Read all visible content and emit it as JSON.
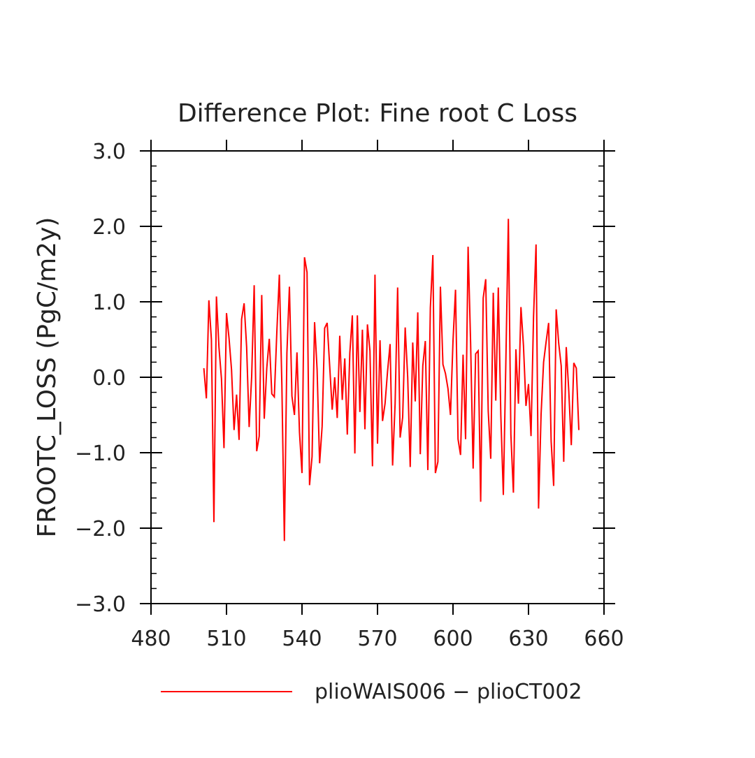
{
  "chart_data": {
    "type": "line",
    "title": "Difference Plot: Fine root C Loss",
    "xlabel": "",
    "ylabel": "FROOTC_LOSS  (PgC/m2y)",
    "xlim": [
      480,
      660
    ],
    "ylim": [
      -3.0,
      3.0
    ],
    "x_ticks": [
      480,
      510,
      540,
      570,
      600,
      630,
      660
    ],
    "x_tick_labels": [
      "480",
      "510",
      "540",
      "570",
      "600",
      "630",
      "660"
    ],
    "y_ticks": [
      -3.0,
      -2.0,
      -1.0,
      0.0,
      1.0,
      2.0,
      3.0
    ],
    "y_tick_labels": [
      "−3.0",
      "−2.0",
      "−1.0",
      "0.0",
      "1.0",
      "2.0",
      "3.0"
    ],
    "grid": false,
    "legend_position": "bottom",
    "series": [
      {
        "name": "plioWAIS006 − plioCT002",
        "color": "#ff0000",
        "x_start": 501,
        "x_step": 1,
        "values": [
          0.12,
          -0.28,
          1.02,
          0.5,
          -1.92,
          1.07,
          0.4,
          -0.02,
          -0.94,
          0.85,
          0.52,
          0.1,
          -0.7,
          -0.23,
          -0.83,
          0.77,
          0.98,
          0.4,
          -0.66,
          0.01,
          1.22,
          -0.98,
          -0.78,
          1.09,
          -0.55,
          0.12,
          0.51,
          -0.22,
          -0.26,
          0.6,
          1.36,
          -0.1,
          -2.17,
          0.32,
          1.2,
          -0.25,
          -0.5,
          0.33,
          -0.73,
          -1.27,
          1.59,
          1.39,
          -1.43,
          -1.05,
          0.73,
          0.1,
          -1.14,
          -0.65,
          0.65,
          0.72,
          0.15,
          -0.43,
          0.0,
          -0.54,
          0.55,
          -0.3,
          0.25,
          -0.76,
          0.32,
          0.82,
          -1.01,
          0.82,
          -0.46,
          0.63,
          -0.69,
          0.7,
          0.35,
          -1.18,
          1.36,
          -0.88,
          0.49,
          -0.58,
          -0.35,
          0.08,
          0.44,
          -1.17,
          -0.35,
          1.19,
          -0.8,
          -0.53,
          0.66,
          0.0,
          -1.19,
          0.46,
          -0.32,
          0.86,
          -1.02,
          0.15,
          0.48,
          -1.23,
          0.92,
          1.62,
          -1.27,
          -1.12,
          1.2,
          0.17,
          0.05,
          -0.15,
          -0.5,
          0.48,
          1.16,
          -0.82,
          -1.03,
          0.3,
          -0.82,
          1.73,
          0.45,
          -1.21,
          0.31,
          0.35,
          -1.65,
          1.05,
          1.3,
          -0.45,
          -1.08,
          1.12,
          -0.31,
          1.19,
          -0.5,
          -1.56,
          0.2,
          2.1,
          -0.76,
          -1.53,
          0.37,
          -0.35,
          0.93,
          0.42,
          -0.38,
          -0.09,
          -0.78,
          0.8,
          1.76,
          -1.74,
          -0.49,
          0.2,
          0.47,
          0.72,
          -0.85,
          -1.44,
          0.9,
          0.45,
          0.15,
          -1.12,
          0.4,
          -0.18,
          -0.9,
          0.19,
          0.12,
          -0.7
        ]
      }
    ]
  }
}
